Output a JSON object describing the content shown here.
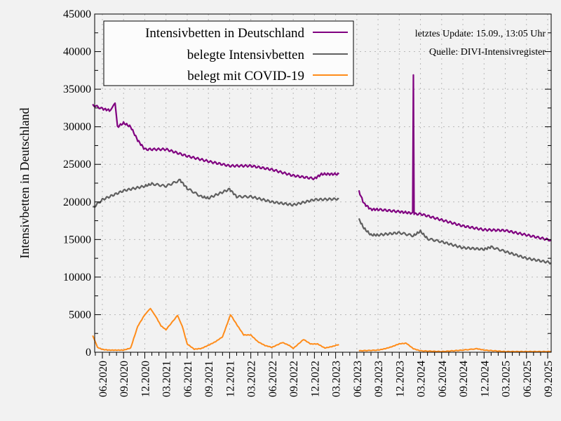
{
  "chart_data": {
    "type": "line",
    "title": "",
    "xlabel": "",
    "ylabel": "Intensivbetten in Deutschland",
    "ylim": [
      0,
      45000
    ],
    "yticks": [
      0,
      5000,
      10000,
      15000,
      20000,
      25000,
      30000,
      35000,
      40000,
      45000
    ],
    "xlim": [
      "2020-04-20",
      "2025-09-15"
    ],
    "xtick_labels": [
      "06.2020",
      "09.2020",
      "12.2020",
      "03.2021",
      "06.2021",
      "09.2021",
      "12.2021",
      "03.2022",
      "06.2022",
      "09.2022",
      "12.2022",
      "03.2023",
      "06.2023",
      "09.2023",
      "12.2023",
      "03.2024",
      "06.2024",
      "09.2024",
      "12.2024",
      "03.2025",
      "06.2025",
      "09.2025"
    ],
    "grid": true,
    "legend_placement": "top-left",
    "annotations": [
      "letztes Update: 15.09., 13:05 Uhr",
      "Quelle: DIVI-Intensivregister"
    ],
    "series": [
      {
        "name": "Intensivbetten in Deutschland",
        "color": "#800080",
        "segments": [
          [
            [
              "2020-04-20",
              32900
            ],
            [
              "2020-06-01",
              32400
            ],
            [
              "2020-07-01",
              32200
            ],
            [
              "2020-07-25",
              33000
            ],
            [
              "2020-08-05",
              30000
            ],
            [
              "2020-09-01",
              30500
            ],
            [
              "2020-10-01",
              30000
            ],
            [
              "2020-11-01",
              28200
            ],
            [
              "2020-12-01",
              27000
            ],
            [
              "2021-03-01",
              27000
            ],
            [
              "2021-06-01",
              26100
            ],
            [
              "2021-09-01",
              25400
            ],
            [
              "2021-12-01",
              24800
            ],
            [
              "2022-03-01",
              24800
            ],
            [
              "2022-06-01",
              24300
            ],
            [
              "2022-09-01",
              23500
            ],
            [
              "2022-12-01",
              23100
            ],
            [
              "2023-01-01",
              23700
            ],
            [
              "2023-03-15",
              23700
            ]
          ],
          [
            [
              "2023-06-10",
              21400
            ],
            [
              "2023-07-01",
              19800
            ],
            [
              "2023-08-01",
              19000
            ],
            [
              "2023-09-01",
              19000
            ],
            [
              "2023-12-01",
              18700
            ],
            [
              "2024-01-28",
              18500
            ],
            [
              "2024-02-01",
              36800
            ],
            [
              "2024-02-04",
              18400
            ],
            [
              "2024-03-01",
              18400
            ],
            [
              "2024-06-01",
              17600
            ],
            [
              "2024-09-01",
              16800
            ],
            [
              "2024-12-01",
              16300
            ],
            [
              "2025-03-01",
              16200
            ],
            [
              "2025-06-01",
              15600
            ],
            [
              "2025-09-15",
              14900
            ]
          ]
        ]
      },
      {
        "name": "belegte Intensivbetten",
        "color": "#606060",
        "segments": [
          [
            [
              "2020-04-20",
              19200
            ],
            [
              "2020-06-01",
              20300
            ],
            [
              "2020-09-01",
              21500
            ],
            [
              "2020-12-01",
              22100
            ],
            [
              "2021-01-01",
              22400
            ],
            [
              "2021-03-01",
              22100
            ],
            [
              "2021-05-01",
              22900
            ],
            [
              "2021-06-01",
              21800
            ],
            [
              "2021-08-01",
              20700
            ],
            [
              "2021-09-01",
              20500
            ],
            [
              "2021-12-01",
              21700
            ],
            [
              "2022-01-01",
              20700
            ],
            [
              "2022-03-01",
              20700
            ],
            [
              "2022-06-01",
              20000
            ],
            [
              "2022-09-01",
              19600
            ],
            [
              "2022-12-01",
              20300
            ],
            [
              "2023-03-15",
              20400
            ]
          ],
          [
            [
              "2023-06-10",
              17700
            ],
            [
              "2023-07-01",
              16500
            ],
            [
              "2023-08-01",
              15600
            ],
            [
              "2023-09-01",
              15600
            ],
            [
              "2023-12-01",
              15900
            ],
            [
              "2024-02-01",
              15500
            ],
            [
              "2024-03-01",
              16100
            ],
            [
              "2024-04-01",
              15100
            ],
            [
              "2024-06-01",
              14700
            ],
            [
              "2024-09-01",
              13900
            ],
            [
              "2024-12-01",
              13700
            ],
            [
              "2025-01-01",
              14000
            ],
            [
              "2025-03-01",
              13400
            ],
            [
              "2025-06-01",
              12500
            ],
            [
              "2025-09-15",
              11900
            ]
          ]
        ]
      },
      {
        "name": "belegt mit COVID-19",
        "color": "#ff8c1a",
        "segments": [
          [
            [
              "2020-04-20",
              2200
            ],
            [
              "2020-05-10",
              650
            ],
            [
              "2020-06-01",
              370
            ],
            [
              "2020-07-01",
              280
            ],
            [
              "2020-08-01",
              280
            ],
            [
              "2020-09-01",
              280
            ],
            [
              "2020-10-01",
              560
            ],
            [
              "2020-11-01",
              3450
            ],
            [
              "2020-12-01",
              5000
            ],
            [
              "2020-12-25",
              5800
            ],
            [
              "2021-01-15",
              4900
            ],
            [
              "2021-02-10",
              3500
            ],
            [
              "2021-03-01",
              3000
            ],
            [
              "2021-04-20",
              4900
            ],
            [
              "2021-05-10",
              3500
            ],
            [
              "2021-06-01",
              1100
            ],
            [
              "2021-07-01",
              400
            ],
            [
              "2021-08-01",
              500
            ],
            [
              "2021-09-01",
              930
            ],
            [
              "2021-10-01",
              1400
            ],
            [
              "2021-11-01",
              2050
            ],
            [
              "2021-12-05",
              5000
            ],
            [
              "2022-01-01",
              3700
            ],
            [
              "2022-02-01",
              2300
            ],
            [
              "2022-03-01",
              2300
            ],
            [
              "2022-04-01",
              1400
            ],
            [
              "2022-05-01",
              900
            ],
            [
              "2022-06-01",
              650
            ],
            [
              "2022-07-15",
              1300
            ],
            [
              "2022-08-15",
              900
            ],
            [
              "2022-09-01",
              500
            ],
            [
              "2022-10-15",
              1700
            ],
            [
              "2022-11-15",
              1100
            ],
            [
              "2022-12-15",
              1100
            ],
            [
              "2023-01-15",
              560
            ],
            [
              "2023-02-15",
              750
            ],
            [
              "2023-03-15",
              1030
            ]
          ],
          [
            [
              "2023-06-10",
              190
            ],
            [
              "2023-09-01",
              280
            ],
            [
              "2023-10-01",
              470
            ],
            [
              "2023-11-01",
              750
            ],
            [
              "2023-12-01",
              1120
            ],
            [
              "2024-01-01",
              1200
            ],
            [
              "2024-02-01",
              470
            ],
            [
              "2024-03-01",
              190
            ],
            [
              "2024-06-01",
              90
            ],
            [
              "2024-09-01",
              280
            ],
            [
              "2024-11-01",
              470
            ],
            [
              "2024-12-01",
              280
            ],
            [
              "2025-03-01",
              90
            ],
            [
              "2025-06-01",
              90
            ],
            [
              "2025-09-15",
              90
            ]
          ]
        ]
      }
    ]
  }
}
